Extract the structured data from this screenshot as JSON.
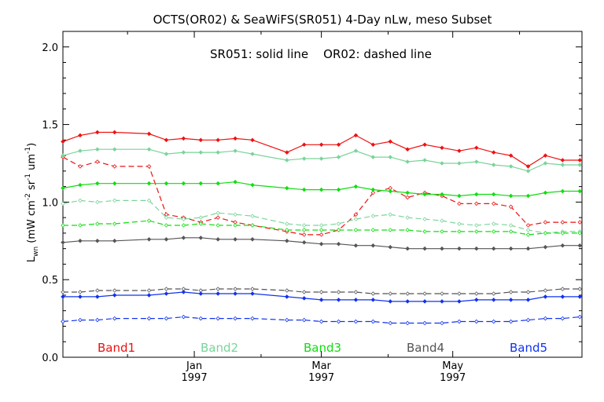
{
  "chart_data": {
    "type": "line",
    "title": "OCTS(OR02) & SeaWiFS(SR051) 4-Day nLw, meso Subset",
    "annotation": "SR051: solid line    OR02: dashed line",
    "ylabel_main": "L",
    "ylabel_sub": "wn",
    "ylabel_units": {
      "open": " (mW cm",
      "e1": "-2",
      "mid1": " sr",
      "e2": "-1",
      "mid2": " um",
      "e3": "-1",
      "close": ")"
    },
    "ylim": [
      0.0,
      2.1
    ],
    "yticks": [
      {
        "value": 0.0,
        "label": "0.0"
      },
      {
        "value": 0.5,
        "label": "0.5"
      },
      {
        "value": 1.0,
        "label": "1.0"
      },
      {
        "value": 1.5,
        "label": "1.5"
      },
      {
        "value": 2.0,
        "label": "2.0"
      }
    ],
    "xlim": [
      "1996-11-01",
      "1997-06-30"
    ],
    "xticks": [
      {
        "date": "1997-01-01",
        "label": "Jan",
        "year": "1997"
      },
      {
        "date": "1997-03-01",
        "label": "Mar",
        "year": "1997"
      },
      {
        "date": "1997-05-01",
        "label": "May",
        "year": "1997"
      }
    ],
    "x": [
      "1996-11-01",
      "1996-11-09",
      "1996-11-17",
      "1996-11-25",
      "1996-12-11",
      "1996-12-19",
      "1996-12-27",
      "1997-01-04",
      "1997-01-12",
      "1997-01-20",
      "1997-01-28",
      "1997-02-13",
      "1997-02-21",
      "1997-03-01",
      "1997-03-09",
      "1997-03-17",
      "1997-03-25",
      "1997-04-02",
      "1997-04-10",
      "1997-04-18",
      "1997-04-26",
      "1997-05-04",
      "1997-05-12",
      "1997-05-20",
      "1997-05-28",
      "1997-06-05",
      "1997-06-13",
      "1997-06-21",
      "1997-06-29"
    ],
    "series": [
      {
        "name": "Band1",
        "style": "solid",
        "color": "#ee1111",
        "values": [
          1.39,
          1.43,
          1.45,
          1.45,
          1.44,
          1.4,
          1.41,
          1.4,
          1.4,
          1.41,
          1.4,
          1.32,
          1.37,
          1.37,
          1.37,
          1.43,
          1.37,
          1.39,
          1.34,
          1.37,
          1.35,
          1.33,
          1.35,
          1.32,
          1.3,
          1.23,
          1.3,
          1.27,
          1.27
        ]
      },
      {
        "name": "Band1",
        "style": "dashed",
        "color": "#ee1111",
        "values": [
          1.29,
          1.23,
          1.26,
          1.23,
          1.23,
          0.92,
          0.9,
          0.87,
          0.9,
          0.87,
          0.85,
          0.81,
          0.79,
          0.79,
          0.82,
          0.92,
          1.06,
          1.09,
          1.03,
          1.06,
          1.04,
          0.99,
          0.99,
          0.99,
          0.97,
          0.85,
          0.87,
          0.87,
          0.87
        ]
      },
      {
        "name": "Band2",
        "style": "solid",
        "color": "#7ad49a",
        "values": [
          1.3,
          1.33,
          1.34,
          1.34,
          1.34,
          1.31,
          1.32,
          1.32,
          1.32,
          1.33,
          1.31,
          1.27,
          1.28,
          1.28,
          1.29,
          1.33,
          1.29,
          1.29,
          1.26,
          1.27,
          1.25,
          1.25,
          1.26,
          1.24,
          1.23,
          1.2,
          1.25,
          1.24,
          1.24
        ]
      },
      {
        "name": "Band2",
        "style": "dashed",
        "color": "#7ad49a",
        "values": [
          0.99,
          1.01,
          1.0,
          1.01,
          1.01,
          0.9,
          0.89,
          0.9,
          0.93,
          0.92,
          0.91,
          0.86,
          0.85,
          0.85,
          0.86,
          0.89,
          0.91,
          0.92,
          0.9,
          0.89,
          0.88,
          0.86,
          0.85,
          0.86,
          0.85,
          0.82,
          0.8,
          0.81,
          0.81
        ]
      },
      {
        "name": "Band3",
        "style": "solid",
        "color": "#11dd11",
        "values": [
          1.09,
          1.11,
          1.12,
          1.12,
          1.12,
          1.12,
          1.12,
          1.12,
          1.12,
          1.13,
          1.11,
          1.09,
          1.08,
          1.08,
          1.08,
          1.1,
          1.08,
          1.07,
          1.06,
          1.05,
          1.05,
          1.04,
          1.05,
          1.05,
          1.04,
          1.04,
          1.06,
          1.07,
          1.07
        ]
      },
      {
        "name": "Band3",
        "style": "dashed",
        "color": "#11dd11",
        "values": [
          0.85,
          0.85,
          0.86,
          0.86,
          0.88,
          0.85,
          0.85,
          0.86,
          0.85,
          0.85,
          0.85,
          0.82,
          0.82,
          0.82,
          0.82,
          0.82,
          0.82,
          0.82,
          0.82,
          0.81,
          0.81,
          0.81,
          0.81,
          0.81,
          0.81,
          0.79,
          0.8,
          0.8,
          0.8
        ]
      },
      {
        "name": "Band4",
        "style": "solid",
        "color": "#555555",
        "values": [
          0.74,
          0.75,
          0.75,
          0.75,
          0.76,
          0.76,
          0.77,
          0.77,
          0.76,
          0.76,
          0.76,
          0.75,
          0.74,
          0.73,
          0.73,
          0.72,
          0.72,
          0.71,
          0.7,
          0.7,
          0.7,
          0.7,
          0.7,
          0.7,
          0.7,
          0.7,
          0.71,
          0.72,
          0.72
        ]
      },
      {
        "name": "Band4",
        "style": "dashed",
        "color": "#555555",
        "values": [
          0.42,
          0.42,
          0.43,
          0.43,
          0.43,
          0.44,
          0.44,
          0.43,
          0.44,
          0.44,
          0.44,
          0.43,
          0.42,
          0.42,
          0.42,
          0.42,
          0.41,
          0.41,
          0.41,
          0.41,
          0.41,
          0.41,
          0.41,
          0.41,
          0.42,
          0.42,
          0.43,
          0.44,
          0.44
        ]
      },
      {
        "name": "Band5",
        "style": "solid",
        "color": "#1133ee",
        "values": [
          0.39,
          0.39,
          0.39,
          0.4,
          0.4,
          0.41,
          0.42,
          0.41,
          0.41,
          0.41,
          0.41,
          0.39,
          0.38,
          0.37,
          0.37,
          0.37,
          0.37,
          0.36,
          0.36,
          0.36,
          0.36,
          0.36,
          0.37,
          0.37,
          0.37,
          0.37,
          0.39,
          0.39,
          0.39
        ]
      },
      {
        "name": "Band5",
        "style": "dashed",
        "color": "#1133ee",
        "values": [
          0.23,
          0.24,
          0.24,
          0.25,
          0.25,
          0.25,
          0.26,
          0.25,
          0.25,
          0.25,
          0.25,
          0.24,
          0.24,
          0.23,
          0.23,
          0.23,
          0.23,
          0.22,
          0.22,
          0.22,
          0.22,
          0.23,
          0.23,
          0.23,
          0.23,
          0.24,
          0.25,
          0.25,
          0.26
        ]
      }
    ],
    "legend": [
      {
        "label": "Band1",
        "color": "#ee1111"
      },
      {
        "label": "Band2",
        "color": "#7ad49a"
      },
      {
        "label": "Band3",
        "color": "#11dd11"
      },
      {
        "label": "Band4",
        "color": "#555555"
      },
      {
        "label": "Band5",
        "color": "#1133ee"
      }
    ],
    "legend_placement": "bottom, inside plot",
    "grid": false
  }
}
